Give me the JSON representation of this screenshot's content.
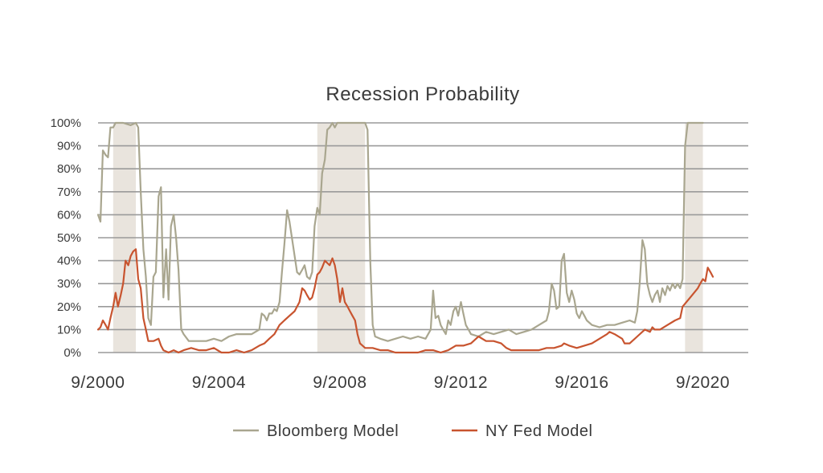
{
  "chart_data": {
    "type": "line",
    "title": "Recession Probability",
    "xlabel": "",
    "ylabel": "",
    "x_ticks": [
      "9/2000",
      "9/2004",
      "9/2008",
      "9/2012",
      "9/2016",
      "9/2020"
    ],
    "y_ticks": [
      "0%",
      "10%",
      "20%",
      "30%",
      "40%",
      "50%",
      "60%",
      "70%",
      "80%",
      "90%",
      "100%"
    ],
    "xlim": [
      2000.67,
      2022.17
    ],
    "ylim": [
      0,
      100
    ],
    "grid": "horizontal",
    "legend_position": "bottom",
    "colors": {
      "bloomberg": "#a9a68f",
      "nyfed": "#c8542f",
      "recession": "#e9e4dd",
      "grid": "#9a9a9a"
    },
    "recessions": [
      [
        2001.17,
        2001.92
      ],
      [
        2007.92,
        2009.5
      ],
      [
        2020.08,
        2020.67
      ]
    ],
    "series": [
      {
        "name": "Bloomberg Model",
        "key": "bloomberg",
        "points": [
          [
            2000.67,
            60
          ],
          [
            2000.75,
            57
          ],
          [
            2000.83,
            88
          ],
          [
            2000.92,
            86
          ],
          [
            2001.0,
            85
          ],
          [
            2001.08,
            98
          ],
          [
            2001.17,
            98
          ],
          [
            2001.25,
            100
          ],
          [
            2001.5,
            100
          ],
          [
            2001.75,
            99
          ],
          [
            2001.92,
            100
          ],
          [
            2002.0,
            98
          ],
          [
            2002.08,
            70
          ],
          [
            2002.17,
            45
          ],
          [
            2002.25,
            33
          ],
          [
            2002.33,
            15
          ],
          [
            2002.42,
            12
          ],
          [
            2002.5,
            33
          ],
          [
            2002.58,
            35
          ],
          [
            2002.67,
            68
          ],
          [
            2002.75,
            72
          ],
          [
            2002.83,
            24
          ],
          [
            2002.92,
            45
          ],
          [
            2003.0,
            23
          ],
          [
            2003.08,
            55
          ],
          [
            2003.17,
            60
          ],
          [
            2003.25,
            50
          ],
          [
            2003.33,
            36
          ],
          [
            2003.42,
            10
          ],
          [
            2003.5,
            8
          ],
          [
            2003.67,
            5
          ],
          [
            2004.0,
            5
          ],
          [
            2004.25,
            5
          ],
          [
            2004.5,
            6
          ],
          [
            2004.75,
            5
          ],
          [
            2005.0,
            7
          ],
          [
            2005.25,
            8
          ],
          [
            2005.5,
            8
          ],
          [
            2005.75,
            8
          ],
          [
            2006.0,
            10
          ],
          [
            2006.08,
            17
          ],
          [
            2006.17,
            16
          ],
          [
            2006.25,
            14
          ],
          [
            2006.33,
            17
          ],
          [
            2006.42,
            17
          ],
          [
            2006.5,
            19
          ],
          [
            2006.58,
            18
          ],
          [
            2006.67,
            22
          ],
          [
            2006.75,
            35
          ],
          [
            2006.83,
            47
          ],
          [
            2006.92,
            62
          ],
          [
            2007.0,
            57
          ],
          [
            2007.08,
            50
          ],
          [
            2007.17,
            42
          ],
          [
            2007.25,
            35
          ],
          [
            2007.33,
            34
          ],
          [
            2007.42,
            36
          ],
          [
            2007.5,
            38
          ],
          [
            2007.58,
            33
          ],
          [
            2007.67,
            32
          ],
          [
            2007.75,
            35
          ],
          [
            2007.83,
            55
          ],
          [
            2007.92,
            63
          ],
          [
            2008.0,
            60
          ],
          [
            2008.08,
            78
          ],
          [
            2008.17,
            84
          ],
          [
            2008.25,
            97
          ],
          [
            2008.33,
            98
          ],
          [
            2008.42,
            100
          ],
          [
            2008.5,
            98
          ],
          [
            2008.58,
            100
          ],
          [
            2008.75,
            100
          ],
          [
            2009.0,
            100
          ],
          [
            2009.25,
            100
          ],
          [
            2009.5,
            100
          ],
          [
            2009.58,
            97
          ],
          [
            2009.67,
            40
          ],
          [
            2009.75,
            12
          ],
          [
            2009.83,
            7
          ],
          [
            2010.0,
            6
          ],
          [
            2010.25,
            5
          ],
          [
            2010.5,
            6
          ],
          [
            2010.75,
            7
          ],
          [
            2011.0,
            6
          ],
          [
            2011.25,
            7
          ],
          [
            2011.5,
            6
          ],
          [
            2011.67,
            10
          ],
          [
            2011.75,
            27
          ],
          [
            2011.83,
            15
          ],
          [
            2011.92,
            16
          ],
          [
            2012.0,
            12
          ],
          [
            2012.08,
            10
          ],
          [
            2012.17,
            8
          ],
          [
            2012.25,
            14
          ],
          [
            2012.33,
            12
          ],
          [
            2012.42,
            18
          ],
          [
            2012.5,
            20
          ],
          [
            2012.58,
            16
          ],
          [
            2012.67,
            22
          ],
          [
            2012.75,
            17
          ],
          [
            2012.83,
            12
          ],
          [
            2012.92,
            10
          ],
          [
            2013.0,
            8
          ],
          [
            2013.25,
            7
          ],
          [
            2013.5,
            9
          ],
          [
            2013.75,
            8
          ],
          [
            2014.0,
            9
          ],
          [
            2014.25,
            10
          ],
          [
            2014.5,
            8
          ],
          [
            2014.75,
            9
          ],
          [
            2015.0,
            10
          ],
          [
            2015.25,
            12
          ],
          [
            2015.5,
            14
          ],
          [
            2015.58,
            18
          ],
          [
            2015.67,
            30
          ],
          [
            2015.75,
            27
          ],
          [
            2015.83,
            19
          ],
          [
            2015.92,
            20
          ],
          [
            2016.0,
            40
          ],
          [
            2016.08,
            43
          ],
          [
            2016.17,
            26
          ],
          [
            2016.25,
            22
          ],
          [
            2016.33,
            27
          ],
          [
            2016.42,
            23
          ],
          [
            2016.5,
            17
          ],
          [
            2016.58,
            15
          ],
          [
            2016.67,
            18
          ],
          [
            2016.75,
            16
          ],
          [
            2016.83,
            14
          ],
          [
            2017.0,
            12
          ],
          [
            2017.25,
            11
          ],
          [
            2017.5,
            12
          ],
          [
            2017.75,
            12
          ],
          [
            2018.0,
            13
          ],
          [
            2018.25,
            14
          ],
          [
            2018.42,
            13
          ],
          [
            2018.5,
            18
          ],
          [
            2018.58,
            30
          ],
          [
            2018.67,
            49
          ],
          [
            2018.75,
            45
          ],
          [
            2018.83,
            30
          ],
          [
            2018.92,
            25
          ],
          [
            2019.0,
            22
          ],
          [
            2019.08,
            25
          ],
          [
            2019.17,
            27
          ],
          [
            2019.25,
            22
          ],
          [
            2019.33,
            28
          ],
          [
            2019.42,
            25
          ],
          [
            2019.5,
            29
          ],
          [
            2019.58,
            27
          ],
          [
            2019.67,
            30
          ],
          [
            2019.75,
            28
          ],
          [
            2019.83,
            30
          ],
          [
            2019.92,
            28
          ],
          [
            2020.0,
            32
          ],
          [
            2020.08,
            90
          ],
          [
            2020.17,
            100
          ],
          [
            2020.67,
            100
          ]
        ]
      },
      {
        "name": "NY Fed Model",
        "key": "nyfed",
        "points": [
          [
            2000.67,
            10
          ],
          [
            2000.75,
            11
          ],
          [
            2000.83,
            14
          ],
          [
            2000.92,
            12
          ],
          [
            2001.0,
            10
          ],
          [
            2001.08,
            15
          ],
          [
            2001.17,
            20
          ],
          [
            2001.25,
            26
          ],
          [
            2001.33,
            20
          ],
          [
            2001.42,
            25
          ],
          [
            2001.5,
            30
          ],
          [
            2001.58,
            40
          ],
          [
            2001.67,
            38
          ],
          [
            2001.75,
            42
          ],
          [
            2001.83,
            44
          ],
          [
            2001.92,
            45
          ],
          [
            2002.0,
            32
          ],
          [
            2002.08,
            28
          ],
          [
            2002.17,
            15
          ],
          [
            2002.25,
            10
          ],
          [
            2002.33,
            5
          ],
          [
            2002.5,
            5
          ],
          [
            2002.67,
            6
          ],
          [
            2002.75,
            3
          ],
          [
            2002.83,
            1
          ],
          [
            2003.0,
            0
          ],
          [
            2003.17,
            1
          ],
          [
            2003.33,
            0
          ],
          [
            2003.5,
            1
          ],
          [
            2003.75,
            2
          ],
          [
            2004.0,
            1
          ],
          [
            2004.25,
            1
          ],
          [
            2004.5,
            2
          ],
          [
            2004.75,
            0
          ],
          [
            2005.0,
            0
          ],
          [
            2005.25,
            1
          ],
          [
            2005.5,
            0
          ],
          [
            2005.75,
            1
          ],
          [
            2006.0,
            3
          ],
          [
            2006.17,
            4
          ],
          [
            2006.33,
            6
          ],
          [
            2006.5,
            8
          ],
          [
            2006.67,
            12
          ],
          [
            2006.83,
            14
          ],
          [
            2007.0,
            16
          ],
          [
            2007.17,
            18
          ],
          [
            2007.33,
            22
          ],
          [
            2007.42,
            28
          ],
          [
            2007.5,
            27
          ],
          [
            2007.58,
            25
          ],
          [
            2007.67,
            23
          ],
          [
            2007.75,
            24
          ],
          [
            2007.83,
            28
          ],
          [
            2007.92,
            34
          ],
          [
            2008.0,
            35
          ],
          [
            2008.08,
            37
          ],
          [
            2008.17,
            40
          ],
          [
            2008.25,
            39
          ],
          [
            2008.33,
            38
          ],
          [
            2008.42,
            41
          ],
          [
            2008.5,
            38
          ],
          [
            2008.58,
            32
          ],
          [
            2008.67,
            22
          ],
          [
            2008.75,
            28
          ],
          [
            2008.83,
            22
          ],
          [
            2008.92,
            20
          ],
          [
            2009.0,
            18
          ],
          [
            2009.08,
            16
          ],
          [
            2009.17,
            14
          ],
          [
            2009.25,
            8
          ],
          [
            2009.33,
            4
          ],
          [
            2009.5,
            2
          ],
          [
            2009.75,
            2
          ],
          [
            2010.0,
            1
          ],
          [
            2010.25,
            1
          ],
          [
            2010.5,
            0
          ],
          [
            2010.75,
            0
          ],
          [
            2011.0,
            0
          ],
          [
            2011.25,
            0
          ],
          [
            2011.5,
            1
          ],
          [
            2011.75,
            1
          ],
          [
            2012.0,
            0
          ],
          [
            2012.25,
            1
          ],
          [
            2012.5,
            3
          ],
          [
            2012.75,
            3
          ],
          [
            2013.0,
            4
          ],
          [
            2013.17,
            6
          ],
          [
            2013.25,
            7
          ],
          [
            2013.5,
            5
          ],
          [
            2013.75,
            5
          ],
          [
            2014.0,
            4
          ],
          [
            2014.17,
            2
          ],
          [
            2014.33,
            1
          ],
          [
            2014.5,
            1
          ],
          [
            2014.75,
            1
          ],
          [
            2015.0,
            1
          ],
          [
            2015.25,
            1
          ],
          [
            2015.5,
            2
          ],
          [
            2015.75,
            2
          ],
          [
            2016.0,
            3
          ],
          [
            2016.08,
            4
          ],
          [
            2016.25,
            3
          ],
          [
            2016.5,
            2
          ],
          [
            2016.75,
            3
          ],
          [
            2017.0,
            4
          ],
          [
            2017.25,
            6
          ],
          [
            2017.5,
            8
          ],
          [
            2017.58,
            9
          ],
          [
            2017.75,
            8
          ],
          [
            2018.0,
            6
          ],
          [
            2018.08,
            4
          ],
          [
            2018.25,
            4
          ],
          [
            2018.5,
            7
          ],
          [
            2018.75,
            10
          ],
          [
            2018.92,
            9
          ],
          [
            2019.0,
            11
          ],
          [
            2019.08,
            10
          ],
          [
            2019.25,
            10
          ],
          [
            2019.5,
            12
          ],
          [
            2019.75,
            14
          ],
          [
            2019.92,
            15
          ],
          [
            2020.0,
            20
          ],
          [
            2020.25,
            24
          ],
          [
            2020.5,
            28
          ],
          [
            2020.58,
            30
          ],
          [
            2020.67,
            32
          ],
          [
            2020.75,
            31
          ],
          [
            2020.83,
            37
          ],
          [
            2020.92,
            35
          ],
          [
            2021.0,
            33
          ]
        ]
      }
    ]
  }
}
